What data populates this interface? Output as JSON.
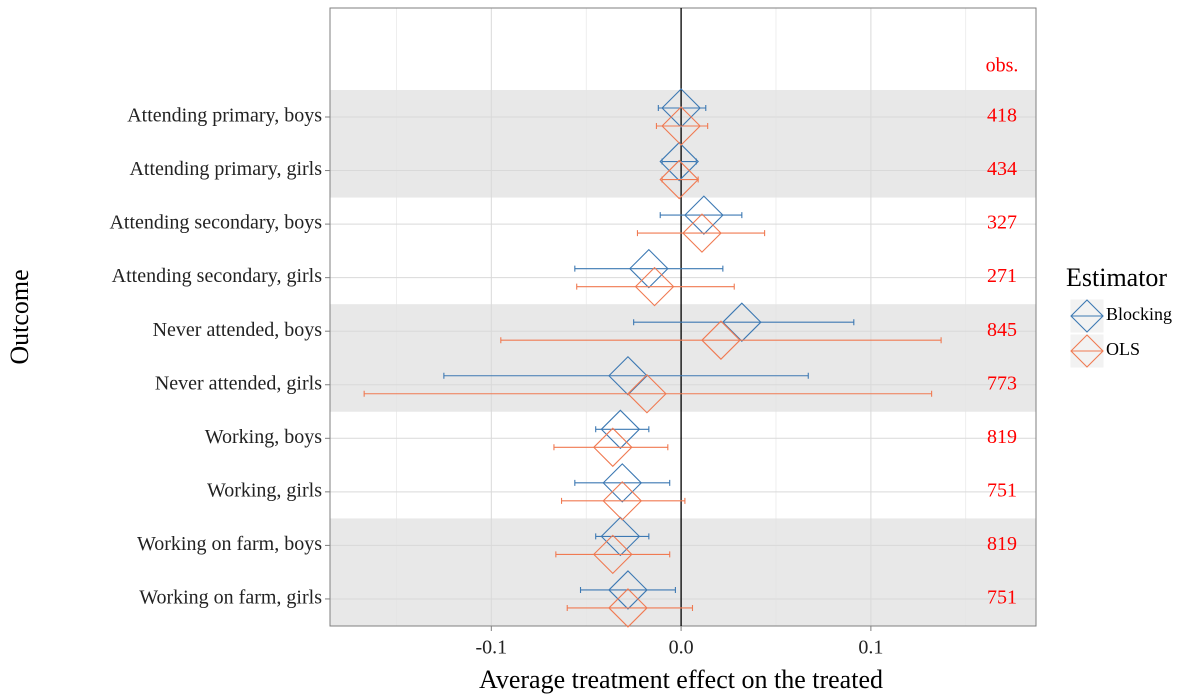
{
  "chart_data": {
    "type": "dotwhisker",
    "xlabel": "Average treatment effect on the treated",
    "ylabel": "Outcome",
    "categories": [
      "Attending primary, boys",
      "Attending primary, girls",
      "Attending secondary, boys",
      "Attending secondary, girls",
      "Never attended, boys",
      "Never attended, girls",
      "Working, boys",
      "Working, girls",
      "Working on farm, boys",
      "Working on farm, girls"
    ],
    "series": [
      {
        "name": "Blocking",
        "color": "#3d79b3",
        "values": [
          0.0,
          -0.001,
          0.012,
          -0.017,
          0.032,
          -0.028,
          -0.032,
          -0.031,
          -0.032,
          -0.028
        ],
        "lower": [
          -0.012,
          -0.01,
          -0.011,
          -0.056,
          -0.025,
          -0.125,
          -0.045,
          -0.056,
          -0.045,
          -0.053
        ],
        "upper": [
          0.013,
          0.008,
          0.032,
          0.022,
          0.091,
          0.067,
          -0.017,
          -0.006,
          -0.017,
          -0.003
        ]
      },
      {
        "name": "OLS",
        "color": "#f07a52",
        "values": [
          0.0,
          -0.001,
          0.011,
          -0.014,
          0.021,
          -0.018,
          -0.036,
          -0.031,
          -0.036,
          -0.028
        ],
        "lower": [
          -0.013,
          -0.01,
          -0.023,
          -0.055,
          -0.095,
          -0.167,
          -0.067,
          -0.063,
          -0.066,
          -0.06
        ],
        "upper": [
          0.014,
          0.009,
          0.044,
          0.028,
          0.137,
          0.132,
          -0.007,
          0.002,
          -0.006,
          0.006
        ]
      }
    ],
    "obs_header": "obs.",
    "obs": [
      418,
      434,
      327,
      271,
      845,
      773,
      819,
      751,
      819,
      751
    ],
    "obs_color": "#ff0000",
    "xlim": [
      -0.185,
      0.187
    ],
    "xticks": [
      -0.1,
      {
        "value": 0,
        "label": "0.0"
      },
      0.1
    ],
    "minor_xticks": [
      -0.15,
      -0.05,
      0.05,
      0.15
    ],
    "reference_line": 0,
    "legend_title": "Estimator",
    "legend_position": "right",
    "grid": true
  }
}
